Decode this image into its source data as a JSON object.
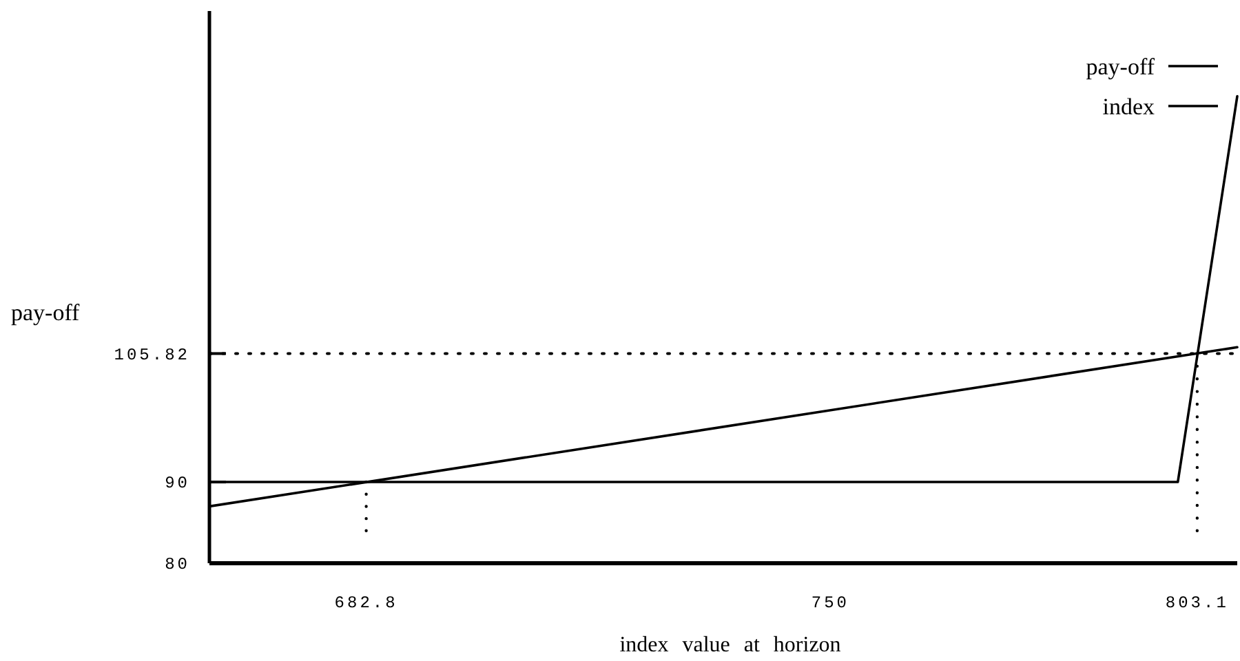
{
  "chart_data": {
    "type": "line",
    "xlabel": "index value at horizon",
    "ylabel": "pay-off",
    "xlim": [
      660.1,
      808.9
    ],
    "ylim": [
      80,
      148
    ],
    "xticks": [
      682.8,
      750,
      803.1
    ],
    "yticks": [
      80,
      90,
      105.82
    ],
    "legend": "top right",
    "line_style": "solid",
    "grid": false,
    "series": [
      {
        "name": "pay-off",
        "color": "#000000",
        "x": [
          660.1,
          800.3,
          808.9
        ],
        "values": [
          90,
          90,
          137.5
        ]
      },
      {
        "name": "index",
        "color": "#000000",
        "x": [
          660.1,
          808.9
        ],
        "values": [
          87.0,
          106.6
        ]
      },
      {
        "color": "#000000",
        "line_style": "dotted",
        "x": [
          682.8,
          682.8
        ],
        "values": [
          90,
          84
        ]
      },
      {
        "color": "#000000",
        "line_style": "dotted",
        "x": [
          803.1,
          803.1
        ],
        "values": [
          105.82,
          84
        ]
      }
    ],
    "ref_lines": [
      {
        "axis": "y",
        "value": 105.82,
        "line_style": "dotted",
        "color": "#000000"
      }
    ]
  }
}
